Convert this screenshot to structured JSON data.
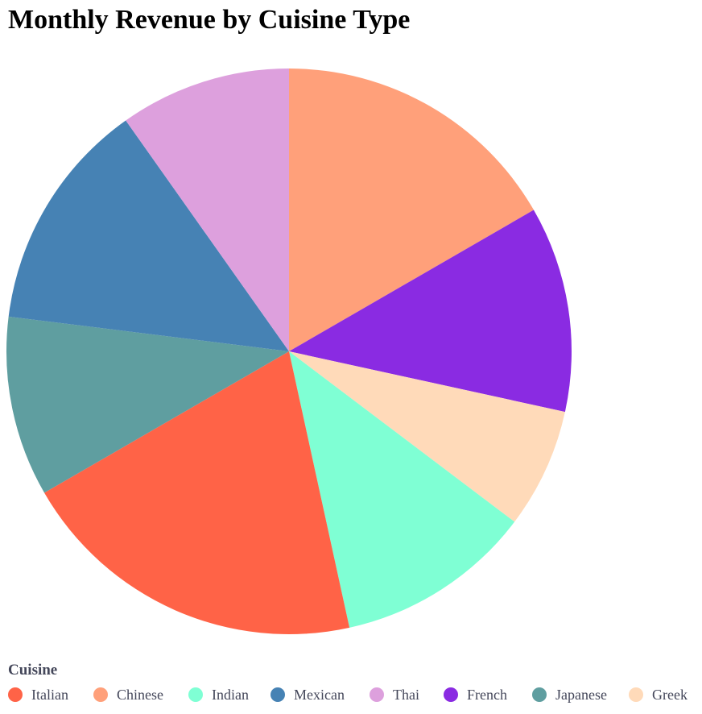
{
  "title": "Monthly Revenue by Cuisine Type",
  "legend": {
    "title": "Cuisine"
  },
  "chart_data": {
    "type": "pie",
    "title": "Monthly Revenue by Cuisine Type",
    "legend_title": "Cuisine",
    "legend_position": "bottom-left",
    "start_angle_deg": 0,
    "direction": "clockwise",
    "slices": [
      {
        "label": "Chinese",
        "value": 17.0,
        "color": "#FFA07A"
      },
      {
        "label": "French",
        "value": 12.0,
        "color": "#8A2BE2"
      },
      {
        "label": "Greek",
        "value": 7.0,
        "color": "#FFDAB9"
      },
      {
        "label": "Indian",
        "value": 11.5,
        "color": "#7FFFD4"
      },
      {
        "label": "Italian",
        "value": 20.5,
        "color": "#FF6347"
      },
      {
        "label": "Japanese",
        "value": 10.5,
        "color": "#5F9EA0"
      },
      {
        "label": "Mexican",
        "value": 13.5,
        "color": "#4682B4"
      },
      {
        "label": "Thai",
        "value": 10.0,
        "color": "#DDA0DD"
      }
    ],
    "legend_order": [
      "Italian",
      "Chinese",
      "Indian",
      "Mexican",
      "Thai",
      "French",
      "Japanese",
      "Greek"
    ]
  }
}
